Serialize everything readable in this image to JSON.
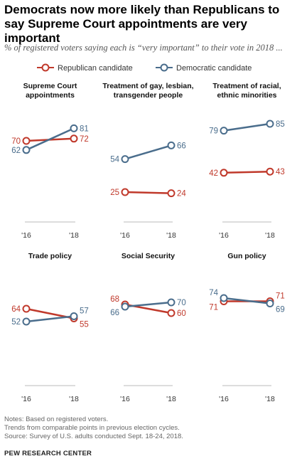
{
  "title": "Democrats now more likely than Republicans to say Supreme Court appointments are very important",
  "subtitle": "% of registered voters saying each is “very important” to their vote in 2018 ...",
  "notes": [
    "Notes: Based on registered voters.",
    "Trends from comparable points in previous election cycles.",
    "Source: Survey of U.S. adults conducted Sept. 18-24, 2018."
  ],
  "source_org": "PEW RESEARCH CENTER",
  "colors": {
    "republican": "#c0392b",
    "democratic": "#4a6d8c",
    "baseline": "#bbbbbb"
  },
  "chart_data": {
    "type": "line",
    "categories": [
      "'16",
      "'18"
    ],
    "legend": {
      "placement": "top",
      "entries": [
        "Republican candidate",
        "Democratic candidate"
      ]
    },
    "ylim": [
      0,
      100
    ],
    "grid": false,
    "panels": [
      {
        "title": [
          "Supreme Court",
          "appointments"
        ],
        "series": [
          {
            "name": "Republican candidate",
            "values": [
              70,
              72
            ]
          },
          {
            "name": "Democratic candidate",
            "values": [
              62,
              81
            ]
          }
        ]
      },
      {
        "title": [
          "Treatment of gay, lesbian,",
          "transgender people"
        ],
        "series": [
          {
            "name": "Republican candidate",
            "values": [
              25,
              24
            ]
          },
          {
            "name": "Democratic candidate",
            "values": [
              54,
              66
            ]
          }
        ]
      },
      {
        "title": [
          "Treatment of racial,",
          "ethnic minorities"
        ],
        "series": [
          {
            "name": "Republican candidate",
            "values": [
              42,
              43
            ]
          },
          {
            "name": "Democratic candidate",
            "values": [
              79,
              85
            ]
          }
        ]
      },
      {
        "title": [
          "Trade policy"
        ],
        "series": [
          {
            "name": "Republican candidate",
            "values": [
              64,
              55
            ]
          },
          {
            "name": "Democratic candidate",
            "values": [
              52,
              57
            ]
          }
        ]
      },
      {
        "title": [
          "Social Security"
        ],
        "series": [
          {
            "name": "Republican candidate",
            "values": [
              68,
              60
            ]
          },
          {
            "name": "Democratic candidate",
            "values": [
              66,
              70
            ]
          }
        ]
      },
      {
        "title": [
          "Gun policy"
        ],
        "series": [
          {
            "name": "Republican candidate",
            "values": [
              71,
              71
            ]
          },
          {
            "name": "Democratic candidate",
            "values": [
              74,
              69
            ]
          }
        ]
      }
    ]
  }
}
